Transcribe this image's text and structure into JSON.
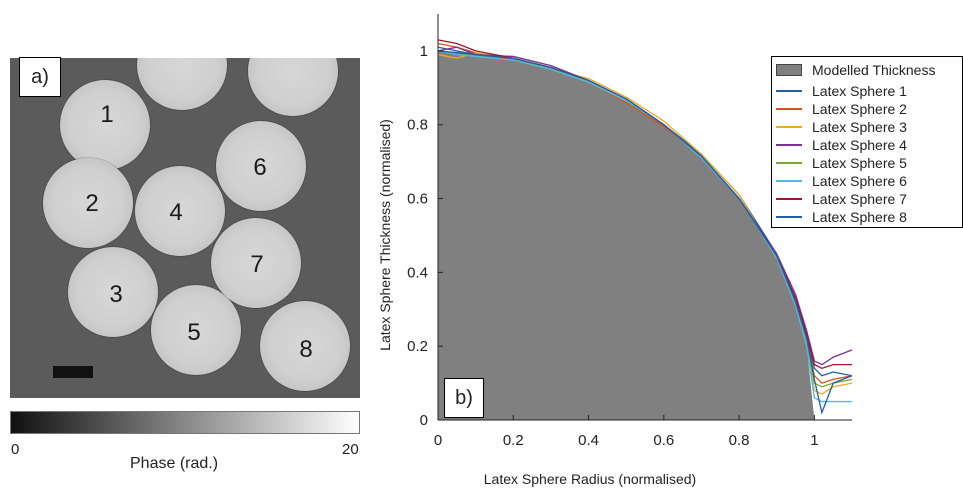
{
  "panel_a": {
    "label": "a)",
    "spheres": [
      {
        "label": "1"
      },
      {
        "label": "2"
      },
      {
        "label": "3"
      },
      {
        "label": "4"
      },
      {
        "label": "5"
      },
      {
        "label": "6"
      },
      {
        "label": "7"
      },
      {
        "label": "8"
      }
    ],
    "colorbar": {
      "min_label": "0",
      "max_label": "20",
      "label": "Phase (rad.)"
    }
  },
  "panel_b": {
    "label": "b)"
  },
  "chart_data": {
    "type": "line",
    "xlabel": "Latex Sphere Radius (normalised)",
    "ylabel": "Latex Sphere Thickness (normalised)",
    "xlim": [
      0,
      1.1
    ],
    "ylim": [
      0,
      1.1
    ],
    "xticks": [
      "0",
      "0.2",
      "0.4",
      "0.6",
      "0.8",
      "1"
    ],
    "yticks": [
      "0",
      "0.2",
      "0.4",
      "0.6",
      "0.8",
      "1"
    ],
    "legend_position": "top-right",
    "modelled": {
      "name": "Modelled Thickness",
      "color": "#808080",
      "x": [
        0,
        0.1,
        0.2,
        0.3,
        0.4,
        0.5,
        0.6,
        0.7,
        0.8,
        0.9,
        0.95,
        0.98,
        1.0
      ],
      "y": [
        1.0,
        0.995,
        0.98,
        0.954,
        0.917,
        0.866,
        0.8,
        0.714,
        0.6,
        0.436,
        0.312,
        0.199,
        0.0
      ]
    },
    "series": [
      {
        "name": "Latex Sphere 1",
        "color": "#1f5fa8",
        "x": [
          0,
          0.05,
          0.1,
          0.2,
          0.3,
          0.4,
          0.5,
          0.6,
          0.7,
          0.8,
          0.9,
          0.95,
          0.98,
          1.0,
          1.02,
          1.05,
          1.1
        ],
        "y": [
          1.01,
          1.0,
          0.99,
          0.98,
          0.955,
          0.92,
          0.87,
          0.8,
          0.72,
          0.61,
          0.45,
          0.33,
          0.23,
          0.14,
          0.12,
          0.13,
          0.12
        ]
      },
      {
        "name": "Latex Sphere 2",
        "color": "#d9541a",
        "x": [
          0,
          0.05,
          0.1,
          0.2,
          0.3,
          0.4,
          0.5,
          0.6,
          0.7,
          0.8,
          0.9,
          0.95,
          0.98,
          1.0,
          1.02,
          1.05,
          1.1
        ],
        "y": [
          1.02,
          1.01,
          0.995,
          0.975,
          0.95,
          0.915,
          0.86,
          0.795,
          0.715,
          0.6,
          0.44,
          0.32,
          0.22,
          0.12,
          0.1,
          0.11,
          0.12
        ]
      },
      {
        "name": "Latex Sphere 3",
        "color": "#e8ac1f",
        "x": [
          0,
          0.05,
          0.1,
          0.2,
          0.3,
          0.4,
          0.5,
          0.6,
          0.7,
          0.8,
          0.9,
          0.95,
          0.98,
          1.0,
          1.02,
          1.05,
          1.1
        ],
        "y": [
          0.99,
          0.98,
          0.995,
          0.98,
          0.95,
          0.925,
          0.875,
          0.81,
          0.72,
          0.61,
          0.44,
          0.31,
          0.2,
          0.08,
          0.07,
          0.09,
          0.1
        ]
      },
      {
        "name": "Latex Sphere 4",
        "color": "#7a3290",
        "x": [
          0,
          0.05,
          0.1,
          0.2,
          0.3,
          0.4,
          0.5,
          0.6,
          0.7,
          0.8,
          0.9,
          0.95,
          0.98,
          1.0,
          1.02,
          1.05,
          1.1
        ],
        "y": [
          1.0,
          1.01,
          0.99,
          0.985,
          0.96,
          0.92,
          0.87,
          0.8,
          0.715,
          0.6,
          0.45,
          0.34,
          0.24,
          0.16,
          0.15,
          0.17,
          0.19
        ]
      },
      {
        "name": "Latex Sphere 5",
        "color": "#77ab30",
        "x": [
          0,
          0.05,
          0.1,
          0.2,
          0.3,
          0.4,
          0.5,
          0.6,
          0.7,
          0.8,
          0.9,
          0.95,
          0.98,
          1.0,
          1.02,
          1.05,
          1.1
        ],
        "y": [
          1.0,
          0.995,
          0.985,
          0.975,
          0.955,
          0.915,
          0.865,
          0.8,
          0.715,
          0.6,
          0.44,
          0.32,
          0.21,
          0.1,
          0.09,
          0.1,
          0.11
        ]
      },
      {
        "name": "Latex Sphere 6",
        "color": "#4dbbe8",
        "x": [
          0,
          0.05,
          0.1,
          0.2,
          0.3,
          0.4,
          0.5,
          0.6,
          0.7,
          0.8,
          0.9,
          0.95,
          0.98,
          1.0,
          1.02,
          1.05,
          1.1
        ],
        "y": [
          1.0,
          0.99,
          0.985,
          0.975,
          0.95,
          0.915,
          0.865,
          0.8,
          0.71,
          0.6,
          0.44,
          0.31,
          0.2,
          0.06,
          0.05,
          0.05,
          0.05
        ]
      },
      {
        "name": "Latex Sphere 7",
        "color": "#a2142f",
        "x": [
          0,
          0.05,
          0.1,
          0.2,
          0.3,
          0.4,
          0.5,
          0.6,
          0.7,
          0.8,
          0.9,
          0.95,
          0.98,
          1.0,
          1.02,
          1.05,
          1.1
        ],
        "y": [
          1.03,
          1.02,
          1.0,
          0.98,
          0.955,
          0.92,
          0.87,
          0.8,
          0.715,
          0.6,
          0.445,
          0.33,
          0.23,
          0.15,
          0.14,
          0.15,
          0.15
        ]
      },
      {
        "name": "Latex Sphere 8",
        "color": "#1f5fa8",
        "x": [
          0,
          0.05,
          0.1,
          0.2,
          0.3,
          0.4,
          0.5,
          0.6,
          0.7,
          0.8,
          0.9,
          0.95,
          0.98,
          1.0,
          1.02,
          1.05,
          1.1
        ],
        "y": [
          1.0,
          0.995,
          0.99,
          0.98,
          0.955,
          0.92,
          0.87,
          0.8,
          0.715,
          0.6,
          0.445,
          0.32,
          0.22,
          0.11,
          0.02,
          0.1,
          0.12
        ]
      }
    ]
  }
}
